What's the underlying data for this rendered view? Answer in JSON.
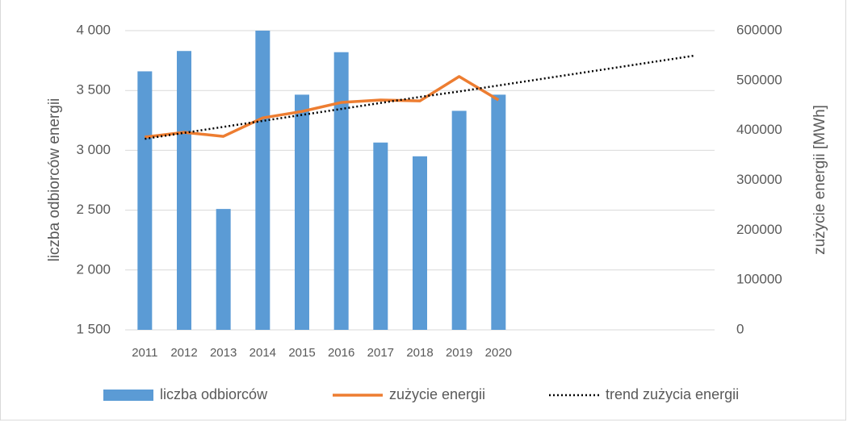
{
  "chart_data": {
    "type": "combo",
    "categories": [
      "2011",
      "2012",
      "2013",
      "2014",
      "2015",
      "2016",
      "2017",
      "2018",
      "2019",
      "2020",
      null,
      null,
      null,
      null,
      null
    ],
    "series": [
      {
        "name": "liczba odbiorców",
        "type": "bar",
        "axis": "y",
        "color": "#5b9bd5",
        "values": [
          3660,
          3830,
          2510,
          4000,
          3465,
          3820,
          3065,
          2950,
          3330,
          3465,
          null,
          null,
          null,
          null,
          null
        ]
      },
      {
        "name": "zużycie energii",
        "type": "line",
        "axis": "y2",
        "color": "#ed7d31",
        "line_style": "solid",
        "values": [
          386500,
          396000,
          388000,
          425000,
          438000,
          456000,
          461000,
          459000,
          508000,
          461000,
          null,
          null,
          null,
          null,
          null
        ]
      },
      {
        "name": "trend zużycia energii",
        "type": "line",
        "axis": "y2",
        "color": "#000000",
        "line_style": "dotted",
        "values": [
          383000,
          395000,
          407000,
          419000,
          431000,
          443000,
          455000,
          467000,
          478000,
          490000,
          502000,
          514000,
          526000,
          538000,
          550000
        ]
      }
    ],
    "y_label": "liczba odbiorców energii",
    "y2_label": "zużycie energii [MWh]",
    "ylim": [
      1500,
      4000
    ],
    "yticks": [
      {
        "value": 1500,
        "label": "1 500"
      },
      {
        "value": 2000,
        "label": "2 000"
      },
      {
        "value": 2500,
        "label": "2 500"
      },
      {
        "value": 3000,
        "label": "3 000"
      },
      {
        "value": 3500,
        "label": "3 500"
      },
      {
        "value": 4000,
        "label": "4 000"
      }
    ],
    "y2lim": [
      0,
      600000
    ],
    "y2ticks": [
      0,
      100000,
      200000,
      300000,
      400000,
      500000,
      600000
    ],
    "grid": true,
    "legend": "bottom"
  }
}
